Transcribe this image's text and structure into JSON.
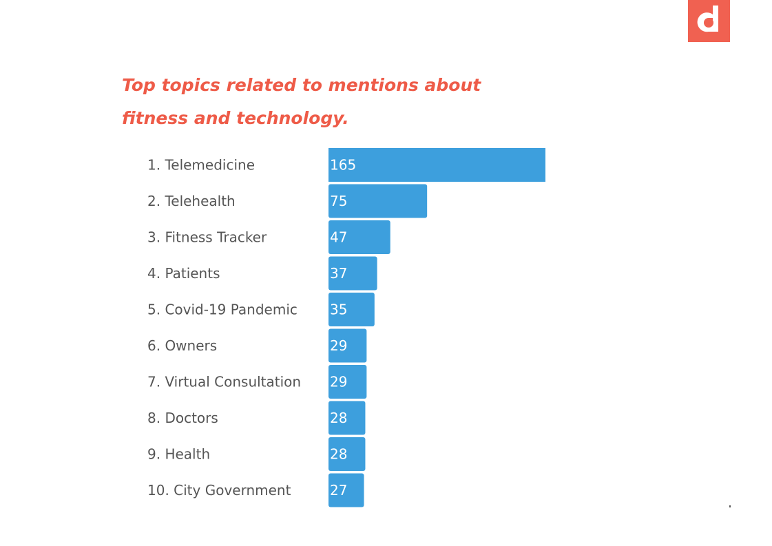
{
  "header": {
    "title_line1": "Top topics related to mentions about",
    "title_line2": "fitness and technology."
  },
  "logo": {
    "icon": "brand-logo-icon",
    "color": "#f06151"
  },
  "colors": {
    "bar": "#3d9fdd",
    "title": "#ee5b48",
    "label": "#555555"
  },
  "chart_data": {
    "type": "bar",
    "orientation": "horizontal",
    "title": "Top topics related to mentions about fitness and technology.",
    "categories": [
      "1. Telemedicine",
      "2. Telehealth",
      "3. Fitness Tracker",
      "4. Patients",
      "5. Covid-19 Pandemic",
      "6. Owners",
      "7. Virtual Consultation",
      "8. Doctors",
      "9. Health",
      "10. City Government"
    ],
    "values": [
      165,
      75,
      47,
      37,
      35,
      29,
      29,
      28,
      28,
      27
    ],
    "xlim": [
      0,
      165
    ],
    "grid": false,
    "legend": "none",
    "data_labels": "inside-left"
  }
}
